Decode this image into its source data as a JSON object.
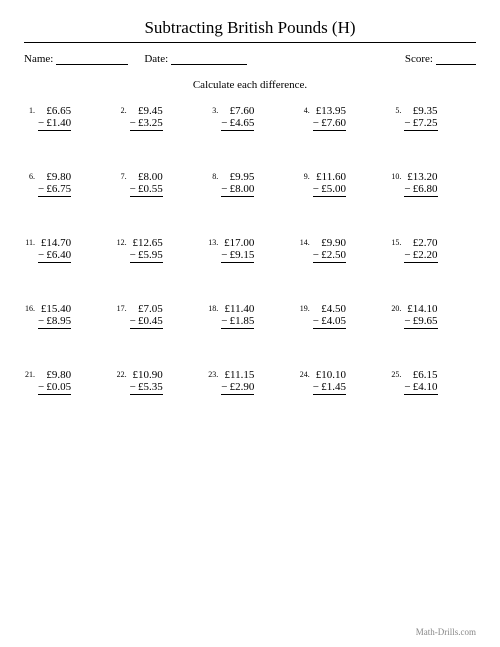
{
  "title": "Subtracting British Pounds (H)",
  "meta": {
    "name_label": "Name:",
    "date_label": "Date:",
    "score_label": "Score:"
  },
  "instruction": "Calculate each difference.",
  "currency_symbol": "£",
  "minus_sign": "−",
  "problems": [
    {
      "n": "1.",
      "a": "6.65",
      "b": "1.40"
    },
    {
      "n": "2.",
      "a": "9.45",
      "b": "3.25"
    },
    {
      "n": "3.",
      "a": "7.60",
      "b": "4.65"
    },
    {
      "n": "4.",
      "a": "13.95",
      "b": "7.60"
    },
    {
      "n": "5.",
      "a": "9.35",
      "b": "7.25"
    },
    {
      "n": "6.",
      "a": "9.80",
      "b": "6.75"
    },
    {
      "n": "7.",
      "a": "8.00",
      "b": "0.55"
    },
    {
      "n": "8.",
      "a": "9.95",
      "b": "8.00"
    },
    {
      "n": "9.",
      "a": "11.60",
      "b": "5.00"
    },
    {
      "n": "10.",
      "a": "13.20",
      "b": "6.80"
    },
    {
      "n": "11.",
      "a": "14.70",
      "b": "6.40"
    },
    {
      "n": "12.",
      "a": "12.65",
      "b": "5.95"
    },
    {
      "n": "13.",
      "a": "17.00",
      "b": "9.15"
    },
    {
      "n": "14.",
      "a": "9.90",
      "b": "2.50"
    },
    {
      "n": "15.",
      "a": "2.70",
      "b": "2.20"
    },
    {
      "n": "16.",
      "a": "15.40",
      "b": "8.95"
    },
    {
      "n": "17.",
      "a": "7.05",
      "b": "0.45"
    },
    {
      "n": "18.",
      "a": "11.40",
      "b": "1.85"
    },
    {
      "n": "19.",
      "a": "4.50",
      "b": "4.05"
    },
    {
      "n": "20.",
      "a": "14.10",
      "b": "9.65"
    },
    {
      "n": "21.",
      "a": "9.80",
      "b": "0.05"
    },
    {
      "n": "22.",
      "a": "10.90",
      "b": "5.35"
    },
    {
      "n": "23.",
      "a": "11.15",
      "b": "2.90"
    },
    {
      "n": "24.",
      "a": "10.10",
      "b": "1.45"
    },
    {
      "n": "25.",
      "a": "6.15",
      "b": "4.10"
    }
  ],
  "footer": "Math-Drills.com",
  "style": {
    "page_bg": "#ffffff",
    "text_color": "#000000",
    "footer_color": "#888888",
    "line_widths": {
      "name": 72,
      "date": 76,
      "score": 40
    },
    "font_family": "Times New Roman",
    "title_fontsize": 17,
    "body_fontsize": 11,
    "num_fontsize": 8,
    "columns": 5,
    "rows": 5
  }
}
